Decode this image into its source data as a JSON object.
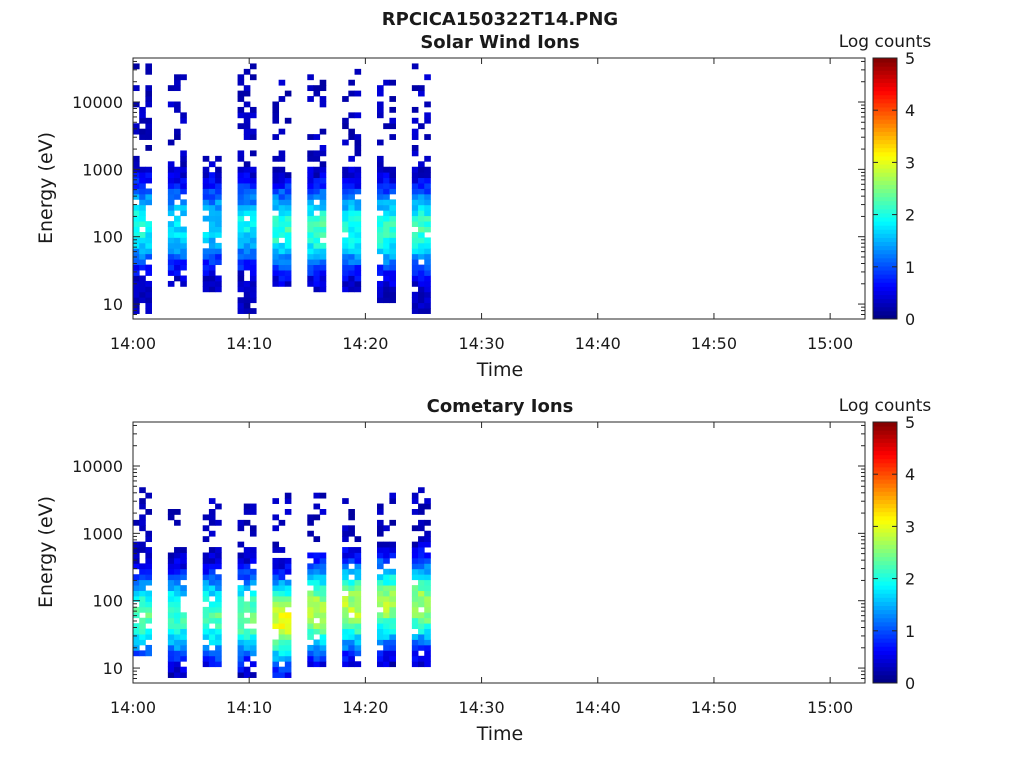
{
  "figure_title": "RPCICA150322T14.PNG",
  "colors": {
    "colormap": [
      "#00007f",
      "#0000ff",
      "#007fff",
      "#00ffff",
      "#7fff7f",
      "#ffff00",
      "#ff7f00",
      "#ff0000",
      "#7f0000"
    ],
    "axis": "#262626",
    "background": "#ffffff"
  },
  "chart_data": [
    {
      "type": "heatmap",
      "title": "Solar Wind Ions",
      "xlabel": "Time",
      "ylabel": "Energy (eV)",
      "y_scale": "log",
      "xlim": [
        "14:00",
        "15:03"
      ],
      "ylim": [
        6,
        45000
      ],
      "x_ticks": [
        "14:00",
        "14:10",
        "14:20",
        "14:30",
        "14:40",
        "14:50",
        "15:00"
      ],
      "y_ticks": [
        {
          "label": "10",
          "value": 10
        },
        {
          "label": "100",
          "value": 100
        },
        {
          "label": "1000",
          "value": 1000
        },
        {
          "label": "10000",
          "value": 10000
        }
      ],
      "colorbar": {
        "label": "Log counts",
        "ticks": [
          "0",
          "1",
          "2",
          "3",
          "4",
          "5"
        ],
        "range": [
          0,
          5
        ]
      },
      "data_end_time": "14:27",
      "peak_log_counts": 2.2,
      "sweeps": [
        {
          "time": "14:00",
          "duration_min": 1.6,
          "peak_energy_ev": 150,
          "peak_log_counts": 2.0,
          "low_energy_ev": 7,
          "high_energy_ev": 40000
        },
        {
          "time": "14:03",
          "duration_min": 1.6,
          "peak_energy_ev": 150,
          "peak_log_counts": 1.8,
          "low_energy_ev": 20,
          "high_energy_ev": 30000
        },
        {
          "time": "14:06",
          "duration_min": 1.6,
          "peak_energy_ev": 150,
          "peak_log_counts": 1.7,
          "low_energy_ev": 14,
          "high_energy_ev": 2000
        },
        {
          "time": "14:09",
          "duration_min": 1.6,
          "peak_energy_ev": 150,
          "peak_log_counts": 1.8,
          "low_energy_ev": 7,
          "high_energy_ev": 40000
        },
        {
          "time": "14:12",
          "duration_min": 1.6,
          "peak_energy_ev": 130,
          "peak_log_counts": 2.1,
          "low_energy_ev": 18,
          "high_energy_ev": 20000
        },
        {
          "time": "14:15",
          "duration_min": 1.6,
          "peak_energy_ev": 130,
          "peak_log_counts": 2.2,
          "low_energy_ev": 14,
          "high_energy_ev": 30000
        },
        {
          "time": "14:18",
          "duration_min": 1.6,
          "peak_energy_ev": 130,
          "peak_log_counts": 2.0,
          "low_energy_ev": 14,
          "high_energy_ev": 30000
        },
        {
          "time": "14:21",
          "duration_min": 1.6,
          "peak_energy_ev": 130,
          "peak_log_counts": 2.1,
          "low_energy_ev": 10,
          "high_energy_ev": 20000
        },
        {
          "time": "14:24",
          "duration_min": 1.6,
          "peak_energy_ev": 130,
          "peak_log_counts": 2.2,
          "low_energy_ev": 7,
          "high_energy_ev": 40000
        }
      ]
    },
    {
      "type": "heatmap",
      "title": "Cometary Ions",
      "xlabel": "Time",
      "ylabel": "Energy (eV)",
      "y_scale": "log",
      "xlim": [
        "14:00",
        "15:03"
      ],
      "ylim": [
        6,
        45000
      ],
      "x_ticks": [
        "14:00",
        "14:10",
        "14:20",
        "14:30",
        "14:40",
        "14:50",
        "15:00"
      ],
      "y_ticks": [
        {
          "label": "10",
          "value": 10
        },
        {
          "label": "100",
          "value": 100
        },
        {
          "label": "1000",
          "value": 1000
        },
        {
          "label": "10000",
          "value": 10000
        }
      ],
      "colorbar": {
        "label": "Log counts",
        "ticks": [
          "0",
          "1",
          "2",
          "3",
          "4",
          "5"
        ],
        "range": [
          0,
          5
        ]
      },
      "data_end_time": "14:27",
      "peak_log_counts": 3.0,
      "sweeps": [
        {
          "time": "14:00",
          "duration_min": 1.6,
          "peak_energy_ev": 60,
          "peak_log_counts": 2.3,
          "low_energy_ev": 14,
          "high_energy_ev": 5000
        },
        {
          "time": "14:03",
          "duration_min": 1.6,
          "peak_energy_ev": 60,
          "peak_log_counts": 2.2,
          "low_energy_ev": 7,
          "high_energy_ev": 2500
        },
        {
          "time": "14:06",
          "duration_min": 1.6,
          "peak_energy_ev": 60,
          "peak_log_counts": 2.3,
          "low_energy_ev": 10,
          "high_energy_ev": 3500
        },
        {
          "time": "14:09",
          "duration_min": 1.6,
          "peak_energy_ev": 60,
          "peak_log_counts": 2.4,
          "low_energy_ev": 7,
          "high_energy_ev": 3000
        },
        {
          "time": "14:12",
          "duration_min": 1.6,
          "peak_energy_ev": 50,
          "peak_log_counts": 3.0,
          "low_energy_ev": 7,
          "high_energy_ev": 5000
        },
        {
          "time": "14:15",
          "duration_min": 1.6,
          "peak_energy_ev": 70,
          "peak_log_counts": 2.8,
          "low_energy_ev": 10,
          "high_energy_ev": 4000
        },
        {
          "time": "14:18",
          "duration_min": 1.6,
          "peak_energy_ev": 80,
          "peak_log_counts": 2.8,
          "low_energy_ev": 10,
          "high_energy_ev": 3500
        },
        {
          "time": "14:21",
          "duration_min": 1.6,
          "peak_energy_ev": 90,
          "peak_log_counts": 2.7,
          "low_energy_ev": 10,
          "high_energy_ev": 4000
        },
        {
          "time": "14:24",
          "duration_min": 1.6,
          "peak_energy_ev": 90,
          "peak_log_counts": 2.7,
          "low_energy_ev": 10,
          "high_energy_ev": 5000
        }
      ]
    }
  ]
}
